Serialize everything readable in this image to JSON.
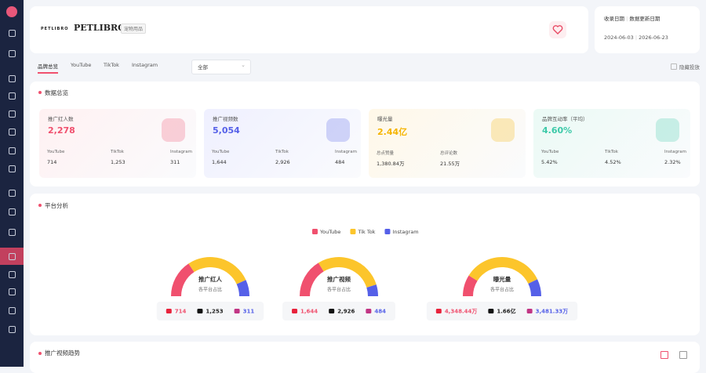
{
  "header": {
    "logo": "PETLIBRO",
    "brand": "PETLIBRO",
    "tag": "宠物用品"
  },
  "dates": {
    "collected_label": "收录日期",
    "updated_label": "数据更新日期",
    "collected": "2024-06-03",
    "updated": "2026-06-23"
  },
  "tabs": [
    "品牌总览",
    "YouTube",
    "TikTok",
    "Instagram"
  ],
  "active_tab": 0,
  "filter": "全部",
  "hide_ads": "隐藏投放",
  "overview": {
    "title": "数据总览",
    "cards": [
      {
        "title": "推广红人数",
        "value": "2,278",
        "color": "#f0506e",
        "bg": "#fff1f2",
        "stats": [
          {
            "label": "YouTube",
            "value": "714"
          },
          {
            "label": "TikTok",
            "value": "1,253"
          },
          {
            "label": "Instagram",
            "value": "311"
          }
        ]
      },
      {
        "title": "推广视频数",
        "value": "5,054",
        "color": "#5560e8",
        "bg": "#eff0ff",
        "stats": [
          {
            "label": "YouTube",
            "value": "1,644"
          },
          {
            "label": "TikTok",
            "value": "2,926"
          },
          {
            "label": "Instagram",
            "value": "484"
          }
        ]
      },
      {
        "title": "曝光量",
        "value": "2.44亿",
        "color": "#f5b400",
        "bg": "#fff8e8",
        "stats": [
          {
            "label": "总点赞量",
            "value": "1,380.84万"
          },
          {
            "label": "总评论数",
            "value": "21.55万"
          }
        ]
      },
      {
        "title": "品牌互动率（平均）",
        "value": "4.60%",
        "color": "#3cc9a8",
        "bg": "#ebfaf5",
        "stats": [
          {
            "label": "YouTube",
            "value": "5.42%"
          },
          {
            "label": "TikTok",
            "value": "4.52%"
          },
          {
            "label": "Instagram",
            "value": "2.32%"
          }
        ]
      }
    ]
  },
  "platform": {
    "title": "平台分析",
    "legend": [
      {
        "name": "YouTube",
        "color": "#f0506e"
      },
      {
        "name": "Tik Tok",
        "color": "#fcc52b"
      },
      {
        "name": "Instagram",
        "color": "#5560e8"
      }
    ],
    "gauges": [
      {
        "title": "推广红人",
        "subtitle": "各平台占比",
        "items": [
          714,
          {
            "value": 1253,
            "label": "1,253"
          },
          311
        ]
      },
      {
        "title": "推广视频",
        "subtitle": "各平台占比",
        "items": [
          {
            "value": 1644,
            "label": "1,644"
          },
          {
            "value": 2926,
            "label": "2,926"
          },
          484
        ]
      },
      {
        "title": "曝光量",
        "subtitle": "各平台占比",
        "items": [
          {
            "value": 4348.44,
            "label": "4,348.44万"
          },
          {
            "value": 16600,
            "label": "1.66亿"
          },
          {
            "value": 3481.33,
            "label": "3,481.33万"
          }
        ]
      }
    ]
  },
  "trend": {
    "title": "推广视频趋势"
  }
}
